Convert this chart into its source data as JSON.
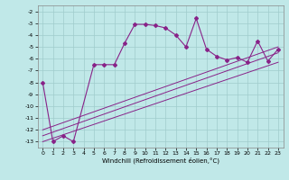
{
  "xlabel": "Windchill (Refroidissement éolien,°C)",
  "background_color": "#c0e8e8",
  "grid_color": "#a0cccc",
  "line_color": "#882288",
  "xlim": [
    -0.5,
    23.5
  ],
  "ylim": [
    -13.5,
    -1.5
  ],
  "yticks": [
    -2,
    -3,
    -4,
    -5,
    -6,
    -7,
    -8,
    -9,
    -10,
    -11,
    -12,
    -13
  ],
  "xticks": [
    0,
    1,
    2,
    3,
    4,
    5,
    6,
    7,
    8,
    9,
    10,
    11,
    12,
    13,
    14,
    15,
    16,
    17,
    18,
    19,
    20,
    21,
    22,
    23
  ],
  "curve1_x": [
    0,
    1,
    2,
    3,
    5,
    6,
    7,
    8,
    9,
    10,
    11,
    12,
    13,
    14,
    15,
    16,
    17,
    18,
    19,
    20,
    21,
    22,
    23
  ],
  "curve1_y": [
    -8,
    -13,
    -12.5,
    -13,
    -6.5,
    -6.5,
    -6.5,
    -4.7,
    -3.1,
    -3.1,
    -3.2,
    -3.4,
    -4.0,
    -5.0,
    -2.6,
    -5.2,
    -5.8,
    -6.1,
    -5.9,
    -6.3,
    -4.5,
    -6.2,
    -5.2
  ],
  "line1_x": [
    0,
    23
  ],
  "line1_y": [
    -12.0,
    -5.0
  ],
  "line2_x": [
    0,
    23
  ],
  "line2_y": [
    -12.5,
    -5.5
  ],
  "line3_x": [
    0,
    23
  ],
  "line3_y": [
    -13.0,
    -6.3
  ]
}
